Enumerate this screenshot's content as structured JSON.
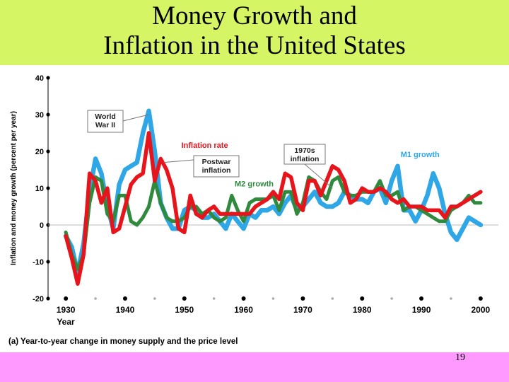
{
  "slide": {
    "title_line1": "Money Growth and",
    "title_line2": "Inflation in the United States",
    "page_number": "19"
  },
  "colors": {
    "title_bg": "#d6f564",
    "footer_bg": "#ff99ff",
    "m1": "#2fa6e6",
    "m2": "#2f8a3e",
    "inflation": "#e8141c"
  },
  "chart_data": {
    "type": "line",
    "ylabel": "Inflation and money growth (percent per year)",
    "xlabel": "Year",
    "caption": "(a) Year-to-year change in money supply and the price level",
    "xlim": [
      1927,
      2003
    ],
    "ylim": [
      -20,
      40
    ],
    "xticks": [
      1930,
      1940,
      1950,
      1960,
      1970,
      1980,
      1990,
      2000
    ],
    "yticks": [
      -20,
      -10,
      0,
      10,
      20,
      30,
      40
    ],
    "annotations": [
      {
        "text": "World War II",
        "lines": [
          "World",
          "War II"
        ],
        "x": 1944,
        "y": 30
      },
      {
        "text": "Postwar inflation",
        "lines": [
          "Postwar",
          "inflation"
        ],
        "x": 1946.5,
        "y": 17
      },
      {
        "text": "1970s inflation",
        "lines": [
          "1970s",
          "inflation"
        ],
        "x": 1975,
        "y": 10
      }
    ],
    "series": [
      {
        "name": "M1 growth",
        "color": "#2fa6e6",
        "x": [
          1930,
          1931,
          1932,
          1933,
          1934,
          1935,
          1936,
          1937,
          1938,
          1939,
          1940,
          1941,
          1942,
          1943,
          1944,
          1945,
          1946,
          1947,
          1948,
          1949,
          1950,
          1951,
          1952,
          1953,
          1954,
          1955,
          1956,
          1957,
          1958,
          1959,
          1960,
          1961,
          1962,
          1963,
          1964,
          1965,
          1966,
          1967,
          1968,
          1969,
          1970,
          1971,
          1972,
          1973,
          1974,
          1975,
          1976,
          1977,
          1978,
          1979,
          1980,
          1981,
          1982,
          1983,
          1984,
          1985,
          1986,
          1987,
          1988,
          1989,
          1990,
          1991,
          1992,
          1993,
          1994,
          1995,
          1996,
          1997,
          1998,
          1999,
          2000
        ],
        "y": [
          -3,
          -6,
          -13,
          -5,
          9,
          18,
          14,
          5,
          -1,
          11,
          15,
          16,
          17,
          25,
          31,
          20,
          6,
          2,
          -1,
          -1,
          4,
          5,
          4,
          2,
          2,
          3,
          1,
          -1,
          3,
          1,
          -1,
          3,
          2,
          4,
          4,
          5,
          3,
          6,
          8,
          4,
          5,
          7,
          9,
          6,
          5,
          5,
          6,
          9,
          8,
          7,
          7,
          6,
          9,
          10,
          6,
          12,
          16,
          4,
          4,
          1,
          4,
          8,
          14,
          10,
          3,
          -2,
          -4,
          -1,
          2,
          1,
          0
        ]
      },
      {
        "name": "M2 growth",
        "color": "#2f8a3e",
        "x": [
          1930,
          1931,
          1932,
          1933,
          1934,
          1935,
          1936,
          1937,
          1938,
          1939,
          1940,
          1941,
          1942,
          1943,
          1944,
          1945,
          1946,
          1947,
          1948,
          1949,
          1950,
          1951,
          1952,
          1953,
          1954,
          1955,
          1956,
          1957,
          1958,
          1959,
          1960,
          1961,
          1962,
          1963,
          1964,
          1965,
          1966,
          1967,
          1968,
          1969,
          1970,
          1971,
          1972,
          1973,
          1974,
          1975,
          1976,
          1977,
          1978,
          1979,
          1980,
          1981,
          1982,
          1983,
          1984,
          1985,
          1986,
          1987,
          1988,
          1989,
          1990,
          1991,
          1992,
          1993,
          1994,
          1995,
          1996,
          1997,
          1998,
          1999,
          2000
        ],
        "y": [
          -2,
          -8,
          -12,
          -8,
          6,
          13,
          12,
          3,
          1,
          8,
          8,
          1,
          0,
          2,
          5,
          12,
          6,
          2,
          1,
          1,
          2,
          5,
          5,
          3,
          4,
          2,
          1,
          2,
          8,
          4,
          1,
          6,
          7,
          7,
          7,
          8,
          4,
          9,
          9,
          3,
          6,
          13,
          12,
          9,
          7,
          12,
          13,
          9,
          8,
          8,
          9,
          9,
          9,
          12,
          8,
          8,
          9,
          4,
          5,
          5,
          4,
          3,
          2,
          1,
          1,
          4,
          5,
          6,
          8,
          6,
          6
        ]
      },
      {
        "name": "Inflation rate",
        "color": "#e8141c",
        "x": [
          1930,
          1931,
          1932,
          1933,
          1934,
          1935,
          1936,
          1937,
          1938,
          1939,
          1940,
          1941,
          1942,
          1943,
          1944,
          1945,
          1946,
          1947,
          1948,
          1949,
          1950,
          1951,
          1952,
          1953,
          1954,
          1955,
          1956,
          1957,
          1958,
          1959,
          1960,
          1961,
          1962,
          1963,
          1964,
          1965,
          1966,
          1967,
          1968,
          1969,
          1970,
          1971,
          1972,
          1973,
          1974,
          1975,
          1976,
          1977,
          1978,
          1979,
          1980,
          1981,
          1982,
          1983,
          1984,
          1985,
          1986,
          1987,
          1988,
          1989,
          1990,
          1991,
          1992,
          1993,
          1994,
          1995,
          1996,
          1997,
          1998,
          1999,
          2000
        ],
        "y": [
          -3,
          -9,
          -16,
          -8,
          14,
          12,
          6,
          10,
          -2,
          -1,
          5,
          11,
          13,
          14,
          25,
          12,
          18,
          15,
          10,
          -1,
          -2,
          8,
          3,
          2,
          4,
          5,
          3,
          3,
          3,
          3,
          3,
          3,
          5,
          6,
          7,
          9,
          7,
          14,
          13,
          6,
          4,
          12,
          12,
          8,
          12,
          16,
          15,
          12,
          6,
          7,
          10,
          9,
          9,
          10,
          9,
          7,
          6,
          7,
          5,
          5,
          5,
          4,
          4,
          4,
          2,
          5,
          5,
          6,
          7,
          8,
          9
        ]
      }
    ],
    "series_labels": [
      {
        "name": "Inflation rate",
        "x": 1949.5,
        "y": 21
      },
      {
        "name": "M2 growth",
        "x": 1958.5,
        "y": 10.5
      },
      {
        "name": "M1 growth",
        "x": 1986.5,
        "y": 18.5
      }
    ]
  }
}
